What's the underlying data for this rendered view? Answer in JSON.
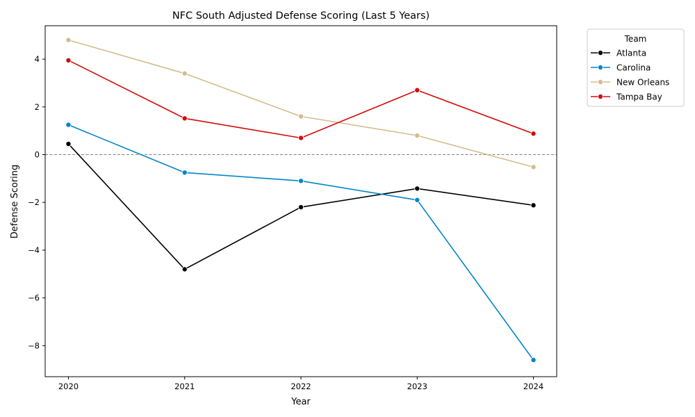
{
  "chart_data": {
    "type": "line",
    "title": "NFC South Adjusted Defense Scoring (Last 5 Years)",
    "xlabel": "Year",
    "ylabel": "Defense Scoring",
    "x": [
      2020,
      2021,
      2022,
      2023,
      2024
    ],
    "x_tick_labels": [
      "2020",
      "2021",
      "2022",
      "2023",
      "2024"
    ],
    "ylim": [
      -9.3,
      5.4
    ],
    "y_ticks": [
      -8,
      -6,
      -4,
      -2,
      0,
      2,
      4
    ],
    "y_tick_labels": [
      "−8",
      "−6",
      "−4",
      "−2",
      "0",
      "2",
      "4"
    ],
    "reference_line": 0,
    "grid": false,
    "legend_title": "Team",
    "legend_position": "outside top-right",
    "series": [
      {
        "name": "Atlanta",
        "color": "#000000",
        "values": [
          0.45,
          -4.8,
          -2.2,
          -1.42,
          -2.12
        ]
      },
      {
        "name": "Carolina",
        "color": "#0085CA",
        "values": [
          1.25,
          -0.75,
          -1.1,
          -1.9,
          -8.6
        ]
      },
      {
        "name": "New Orleans",
        "color": "#D3BC8D",
        "values": [
          4.8,
          3.4,
          1.6,
          0.8,
          -0.52
        ]
      },
      {
        "name": "Tampa Bay",
        "color": "#D50A0A",
        "values": [
          3.95,
          1.52,
          0.7,
          2.7,
          0.88
        ]
      }
    ]
  }
}
